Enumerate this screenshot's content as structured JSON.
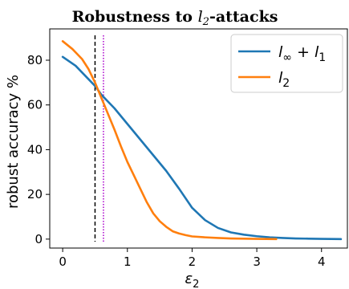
{
  "chart_data": {
    "type": "line",
    "title": {
      "prefix": "Robustness to ",
      "math_base": "l",
      "math_sub": "2",
      "suffix": "-attacks"
    },
    "xlabel": {
      "base": "ε",
      "sub": "2"
    },
    "ylabel": "robust accuracy %",
    "xlim": [
      -0.2,
      4.4
    ],
    "ylim": [
      -4,
      94
    ],
    "xticks": [
      0,
      1,
      2,
      3,
      4
    ],
    "yticks": [
      0,
      20,
      40,
      60,
      80
    ],
    "grid": false,
    "legend_position": "upper right",
    "vlines": [
      {
        "x": 0.5,
        "color": "#000000",
        "style": "dashed"
      },
      {
        "x": 0.63,
        "color": "#aa00cc",
        "style": "dotted"
      }
    ],
    "series": [
      {
        "name": "l_∞ + l_1",
        "legend": {
          "base1": "l",
          "sub1": "∞",
          "mid": " + ",
          "base2": "l",
          "sub2": "1"
        },
        "color": "#1f77b4",
        "x": [
          0,
          0.2,
          0.4,
          0.5,
          0.6,
          0.8,
          1.0,
          1.2,
          1.4,
          1.6,
          1.8,
          2.0,
          2.2,
          2.4,
          2.6,
          2.8,
          3.0,
          3.2,
          3.4,
          3.6,
          3.8,
          4.0,
          4.3
        ],
        "y": [
          81.5,
          77.5,
          71.5,
          68.5,
          64.5,
          58.5,
          51.5,
          44.5,
          37.5,
          30.5,
          22.5,
          14.0,
          8.5,
          5.0,
          3.0,
          2.0,
          1.3,
          0.8,
          0.5,
          0.3,
          0.2,
          0.1,
          0.0
        ]
      },
      {
        "name": "l_2",
        "legend": {
          "base1": "l",
          "sub1": "2"
        },
        "color": "#ff7f0e",
        "x": [
          0,
          0.15,
          0.3,
          0.4,
          0.5,
          0.6,
          0.7,
          0.8,
          0.9,
          1.0,
          1.1,
          1.2,
          1.3,
          1.4,
          1.5,
          1.6,
          1.7,
          1.8,
          1.9,
          2.0,
          2.2,
          2.4,
          2.6,
          2.8,
          3.0,
          3.3
        ],
        "y": [
          88.5,
          85.0,
          80.5,
          76.0,
          70.0,
          63.0,
          56.0,
          49.0,
          41.5,
          34.5,
          28.5,
          22.5,
          16.5,
          11.5,
          8.0,
          5.5,
          3.5,
          2.5,
          1.8,
          1.2,
          0.8,
          0.5,
          0.3,
          0.2,
          0.1,
          0.0
        ]
      }
    ]
  }
}
